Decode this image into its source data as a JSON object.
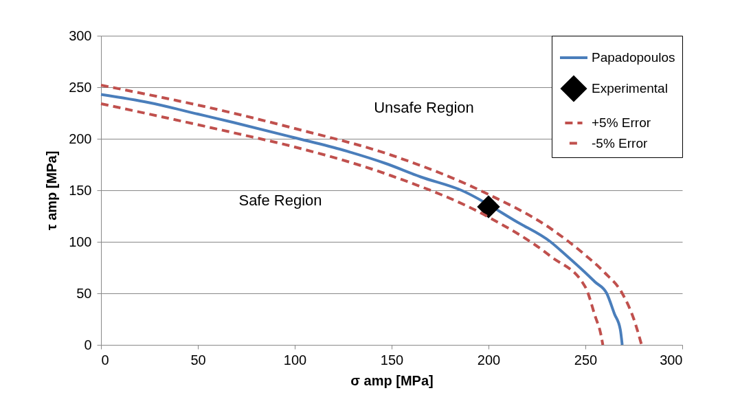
{
  "chart_data": {
    "type": "line",
    "xlabel": "σ amp [MPa]",
    "ylabel": "τ amp [MPa]",
    "xlim": [
      0,
      300
    ],
    "xticks": [
      0,
      50,
      100,
      150,
      200,
      250,
      300
    ],
    "ylim": [
      0,
      300
    ],
    "yticks": [
      0,
      50,
      100,
      150,
      200,
      250,
      300
    ],
    "grid": "y",
    "legend": "top right",
    "series": [
      {
        "name": "Papadopoulos",
        "type": "line",
        "color": "#4a7ebb",
        "line_style": "solid",
        "x": [
          0,
          25,
          50,
          68,
          100,
          125,
          147,
          165,
          186,
          215,
          232,
          240,
          250,
          255,
          261,
          265,
          268,
          269
        ],
        "values": [
          243,
          235,
          224,
          216,
          201,
          189,
          176,
          163,
          150,
          119,
          100,
          87,
          70,
          61,
          50,
          30,
          15,
          0
        ]
      },
      {
        "name": "Experimental",
        "type": "scatter",
        "marker": "diamond",
        "color": "#000000",
        "x": [
          200
        ],
        "values": [
          134
        ]
      },
      {
        "name": "+5% Error",
        "type": "line",
        "color": "#c0504d",
        "line_style": "dashed",
        "x": [
          0,
          68,
          100,
          150,
          200,
          232,
          250,
          260,
          269,
          275,
          279
        ],
        "values": [
          252,
          225,
          210,
          184,
          146,
          113,
          87,
          70,
          50,
          25,
          0
        ]
      },
      {
        "name": "-5% Error",
        "type": "line",
        "color": "#c0504d",
        "line_style": "dashed",
        "x": [
          0,
          68,
          100,
          150,
          200,
          232,
          250,
          255,
          258,
          259
        ],
        "values": [
          234,
          206,
          192,
          164,
          124,
          86,
          56,
          28,
          10,
          0
        ]
      }
    ],
    "annotations": [
      "Unsafe Region",
      "Safe Region"
    ]
  }
}
